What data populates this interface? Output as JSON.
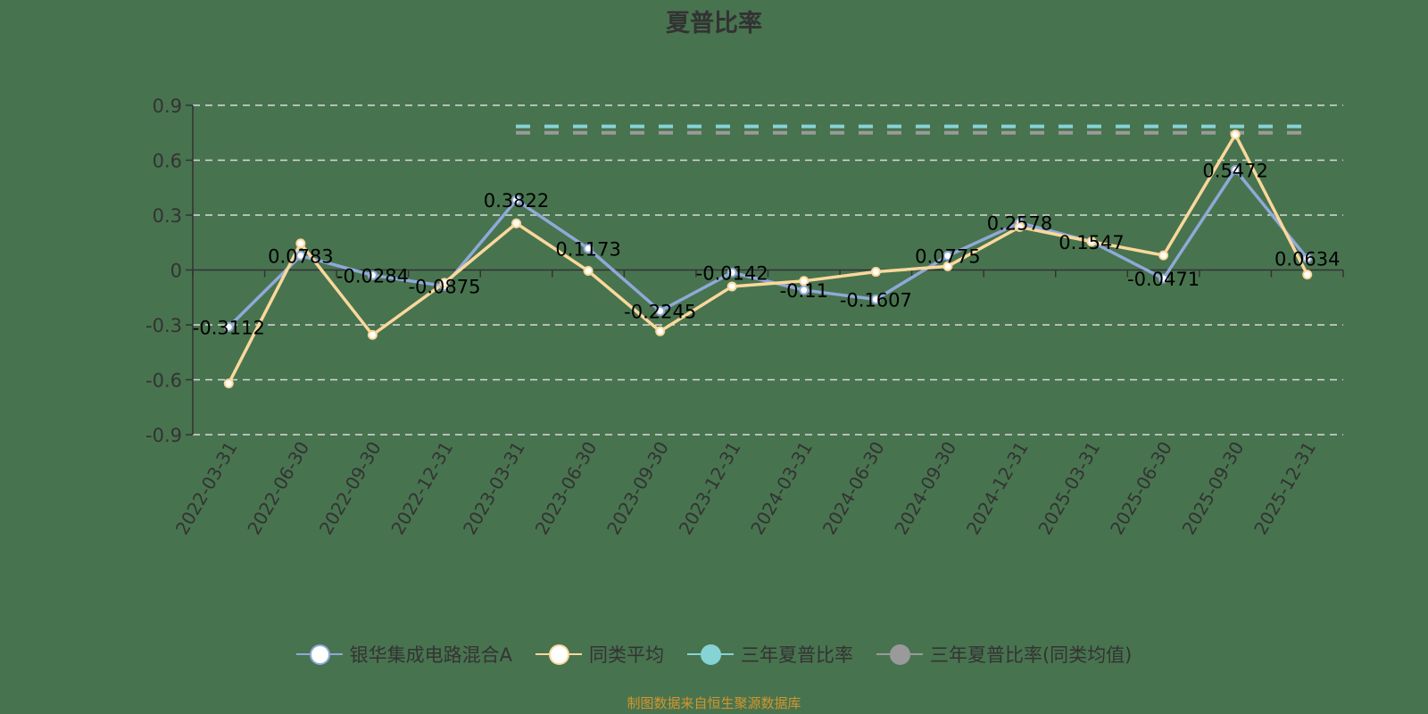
{
  "title": "夏普比率",
  "source": "制图数据来自恒生聚源数据库",
  "colors": {
    "background": "#48734f",
    "fund": "#8fa9d8",
    "peer_avg": "#fad89b",
    "three_year": "#86d3d6",
    "three_year_peer": "#9a9a9a",
    "grid": "#d9d9d9",
    "axis": "#333333",
    "source": "#d4962b"
  },
  "legend": [
    {
      "label": "银华集成电路混合A",
      "color": "#8fa9d8",
      "fill": "#ffffff"
    },
    {
      "label": "同类平均",
      "color": "#fad89b",
      "fill": "#ffffff"
    },
    {
      "label": "三年夏普比率",
      "color": "#86d3d6",
      "fill": "#86d3d6"
    },
    {
      "label": "三年夏普比率(同类均值)",
      "color": "#9a9a9a",
      "fill": "#9a9a9a"
    }
  ],
  "chart_data": {
    "type": "line",
    "title": "夏普比率",
    "xlabel": "",
    "ylabel": "",
    "ylim": [
      -0.9,
      0.9
    ],
    "yticks": [
      0.9,
      0.6,
      0.3,
      0,
      -0.3,
      -0.6,
      -0.9
    ],
    "grid": true,
    "legend_position": "bottom",
    "categories": [
      "2022-03-31",
      "2022-06-30",
      "2022-09-30",
      "2022-12-31",
      "2023-03-31",
      "2023-06-30",
      "2023-09-30",
      "2023-12-31",
      "2024-03-31",
      "2024-06-30",
      "2024-09-30",
      "2024-12-31",
      "2025-03-31",
      "2025-06-30",
      "2025-09-30",
      "2025-12-31"
    ],
    "series": [
      {
        "name": "银华集成电路混合A",
        "values": [
          -0.3112,
          0.0783,
          -0.0284,
          -0.0875,
          0.3822,
          0.1173,
          -0.2245,
          -0.0142,
          -0.11,
          -0.1607,
          0.0775,
          0.2578,
          0.1547,
          -0.0471,
          0.5472,
          0.0634
        ],
        "labels": true
      },
      {
        "name": "同类平均",
        "values": [
          -0.62,
          0.145,
          -0.355,
          -0.07,
          0.255,
          -0.005,
          -0.335,
          -0.09,
          -0.06,
          -0.01,
          0.02,
          0.235,
          0.155,
          0.08,
          0.74,
          -0.025
        ],
        "labels": false
      },
      {
        "name": "三年夏普比率",
        "values": [
          null,
          null,
          null,
          null,
          0.785,
          0.785,
          0.785,
          0.785,
          0.785,
          0.785,
          0.785,
          0.785,
          0.785,
          0.785,
          0.785,
          0.785
        ],
        "style": "dashed"
      },
      {
        "name": "三年夏普比率(同类均值)",
        "values": [
          null,
          null,
          null,
          null,
          0.75,
          0.75,
          0.75,
          0.75,
          0.75,
          0.75,
          0.75,
          0.75,
          0.75,
          0.75,
          0.75,
          0.75
        ],
        "style": "dashed"
      }
    ]
  }
}
